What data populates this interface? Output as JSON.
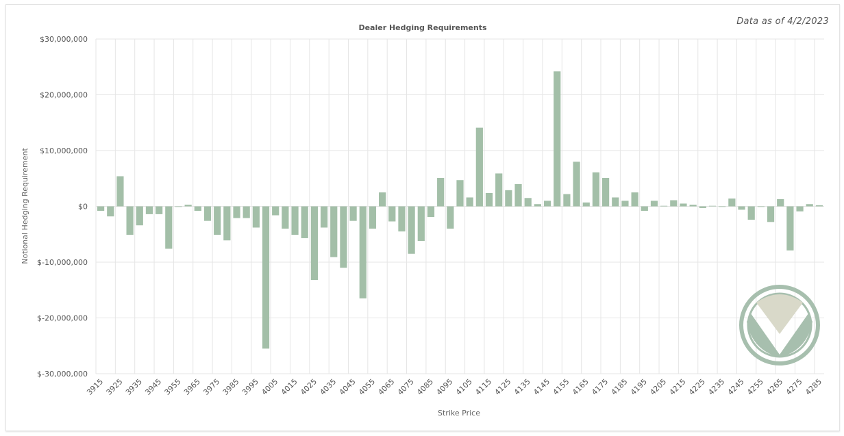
{
  "as_of": "Data as of 4/2/2023",
  "colors": {
    "bar": "#a3bfa8",
    "grid": "#e5e5e5",
    "logo_ring": "#a7bfae",
    "logo_top": "#d9d9c9"
  },
  "logo": {
    "icon": "green-v-logo-icon"
  },
  "chart_data": {
    "type": "bar",
    "title": "Dealer Hedging Requirements",
    "xlabel": "Strike Price",
    "ylabel": "Notional Hedging Requirement",
    "ylim": [
      -30000000,
      30000000
    ],
    "yticks": [
      30000000,
      20000000,
      10000000,
      0,
      -10000000,
      -20000000,
      -30000000
    ],
    "ytick_labels": [
      "$30,000,000",
      "$20,000,000",
      "$10,000,000",
      "$0",
      "$-10,000,000",
      "$-20,000,000",
      "$-30,000,000"
    ],
    "grid": true,
    "legend": "none",
    "categories": [
      "3915",
      "3920",
      "3925",
      "3930",
      "3935",
      "3940",
      "3945",
      "3950",
      "3955",
      "3960",
      "3965",
      "3970",
      "3975",
      "3980",
      "3985",
      "3990",
      "3995",
      "4000",
      "4005",
      "4010",
      "4015",
      "4020",
      "4025",
      "4030",
      "4035",
      "4040",
      "4045",
      "4050",
      "4055",
      "4060",
      "4065",
      "4070",
      "4075",
      "4080",
      "4085",
      "4090",
      "4095",
      "4100",
      "4105",
      "4110",
      "4115",
      "4120",
      "4125",
      "4130",
      "4135",
      "4140",
      "4145",
      "4150",
      "4155",
      "4160",
      "4165",
      "4170",
      "4175",
      "4180",
      "4185",
      "4190",
      "4195",
      "4200",
      "4205",
      "4210",
      "4215",
      "4220",
      "4225",
      "4230",
      "4235",
      "4240",
      "4245",
      "4250",
      "4255",
      "4260",
      "4265",
      "4270",
      "4275",
      "4280",
      "4285"
    ],
    "xtick_labels": [
      "3915",
      "3925",
      "3935",
      "3945",
      "3955",
      "3965",
      "3975",
      "3985",
      "3995",
      "4005",
      "4015",
      "4025",
      "4035",
      "4045",
      "4055",
      "4065",
      "4075",
      "4085",
      "4095",
      "4105",
      "4115",
      "4125",
      "4135",
      "4145",
      "4155",
      "4165",
      "4175",
      "4185",
      "4195",
      "4205",
      "4215",
      "4225",
      "4235",
      "4245",
      "4255",
      "4265",
      "4275",
      "4285"
    ],
    "values": [
      -800000,
      -1800000,
      5400000,
      -5100000,
      -3400000,
      -1400000,
      -1400000,
      -7600000,
      -100000,
      300000,
      -800000,
      -2600000,
      -5100000,
      -6100000,
      -2100000,
      -2100000,
      -3800000,
      -25500000,
      -1600000,
      -4000000,
      -5100000,
      -5700000,
      -13200000,
      -3800000,
      -9100000,
      -11000000,
      -2600000,
      -16500000,
      -4000000,
      2500000,
      -2700000,
      -4500000,
      -8500000,
      -6200000,
      -1900000,
      5100000,
      -4000000,
      4700000,
      1600000,
      14100000,
      2400000,
      5900000,
      2900000,
      4000000,
      1500000,
      400000,
      1000000,
      24200000,
      2200000,
      8000000,
      700000,
      6100000,
      5100000,
      1600000,
      1000000,
      2500000,
      -800000,
      1000000,
      100000,
      1100000,
      500000,
      300000,
      -300000,
      100000,
      -100000,
      1400000,
      -600000,
      -2400000,
      -100000,
      -2800000,
      1300000,
      -7900000,
      -900000,
      400000,
      200000
    ]
  }
}
